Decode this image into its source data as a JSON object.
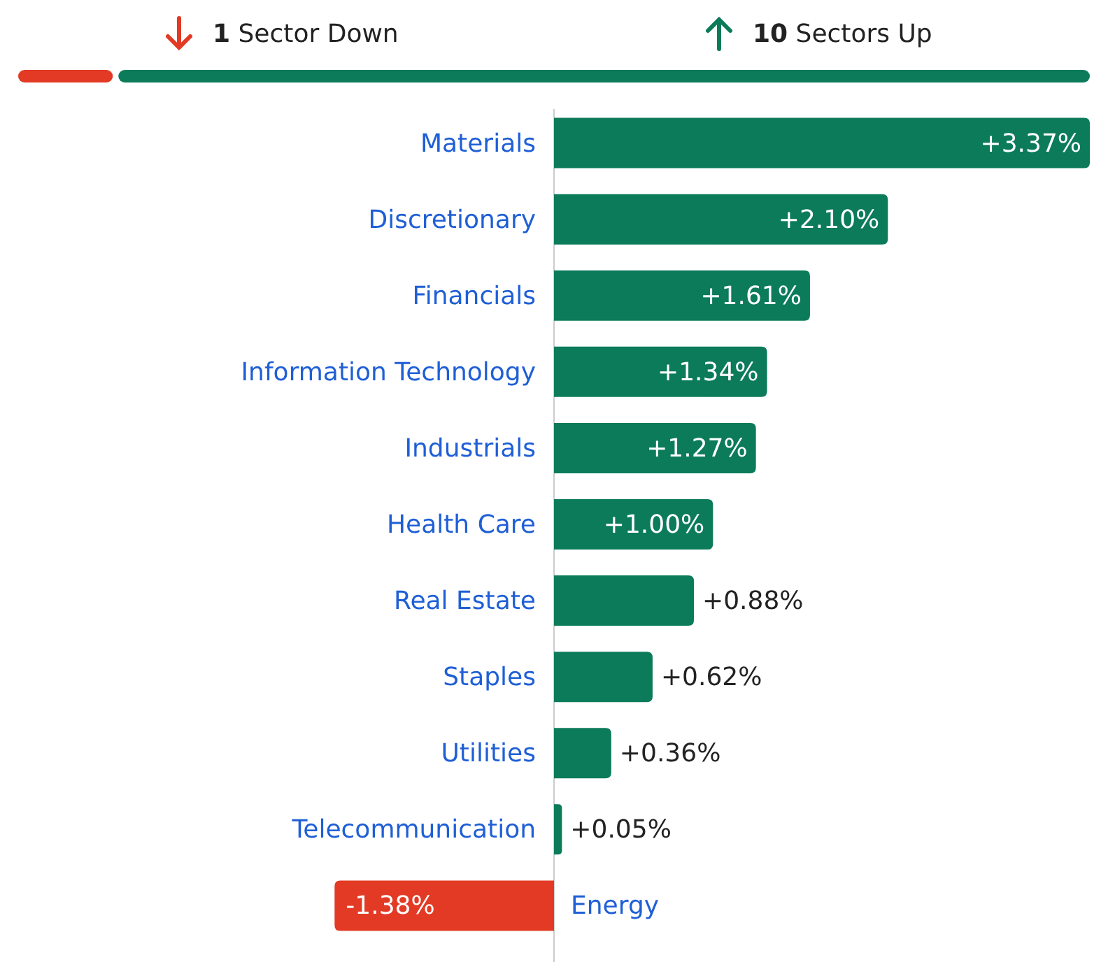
{
  "chart_data": {
    "type": "bar",
    "orientation": "horizontal",
    "categories": [
      "Materials",
      "Discretionary",
      "Financials",
      "Information Technology",
      "Industrials",
      "Health Care",
      "Real Estate",
      "Staples",
      "Utilities",
      "Telecommunication",
      "Energy"
    ],
    "values": [
      3.37,
      2.1,
      1.61,
      1.34,
      1.27,
      1.0,
      0.88,
      0.62,
      0.36,
      0.05,
      -1.38
    ],
    "colors": [
      "#0b7b5a",
      "#0b7b5a",
      "#0b7b5a",
      "#0b7b5a",
      "#0b7b5a",
      "#0b7b5a",
      "#0b7b5a",
      "#0b7b5a",
      "#0b7b5a",
      "#0b7b5a",
      "#e23a24"
    ],
    "value_labels": [
      "+3.37%",
      "+2.10%",
      "+1.61%",
      "+1.34%",
      "+1.27%",
      "+1.00%",
      "+0.88%",
      "+0.62%",
      "+0.36%",
      "+0.05%",
      "-1.38%"
    ],
    "annotations": [
      "1 Sector Down",
      "10 Sectors Up"
    ]
  }
}
